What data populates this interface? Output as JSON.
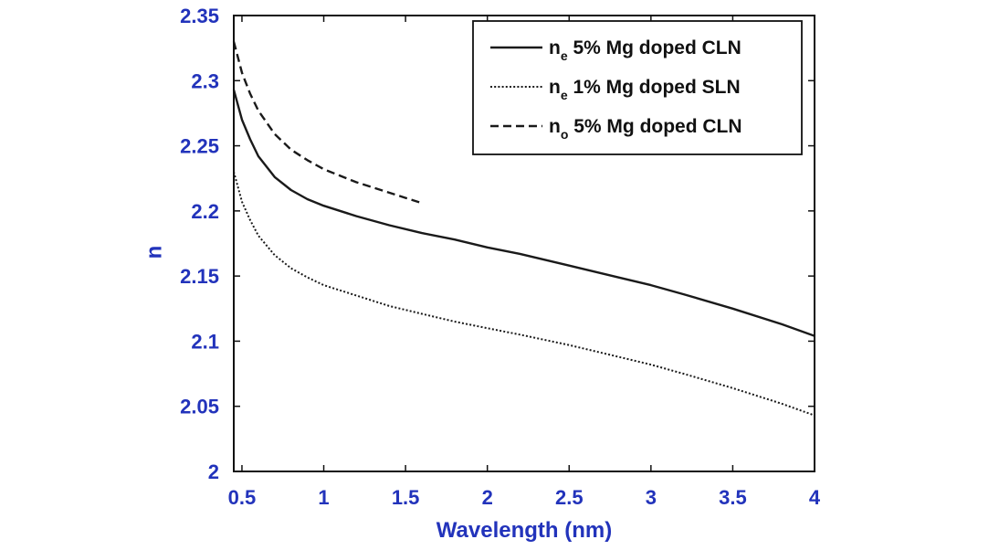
{
  "chart_data": {
    "type": "line",
    "title": "",
    "xlabel": "Wavelength (nm)",
    "ylabel": "n",
    "xlim": [
      0.45,
      4.0
    ],
    "ylim": [
      2.0,
      2.35
    ],
    "xticks": [
      0.5,
      1,
      1.5,
      2,
      2.5,
      3,
      3.5,
      4
    ],
    "xtick_labels": [
      "0.5",
      "1",
      "1.5",
      "2",
      "2.5",
      "3",
      "3.5",
      "4"
    ],
    "yticks": [
      2.0,
      2.05,
      2.1,
      2.15,
      2.2,
      2.25,
      2.3,
      2.35
    ],
    "ytick_labels": [
      "2",
      "2.05",
      "2.1",
      "2.15",
      "2.2",
      "2.25",
      "2.3",
      "2.35"
    ],
    "grid": false,
    "legend_position": "top-right",
    "series": [
      {
        "name": "ne 5% Mg doped CLN",
        "legend_main": "n",
        "legend_sub": "e",
        "legend_rest": " 5% Mg doped CLN",
        "style": "solid",
        "x": [
          0.45,
          0.5,
          0.55,
          0.6,
          0.7,
          0.8,
          0.9,
          1.0,
          1.2,
          1.4,
          1.6,
          1.8,
          2.0,
          2.2,
          2.5,
          2.8,
          3.0,
          3.2,
          3.5,
          3.8,
          4.0
        ],
        "y": [
          2.293,
          2.27,
          2.255,
          2.242,
          2.226,
          2.216,
          2.209,
          2.204,
          2.196,
          2.189,
          2.183,
          2.178,
          2.172,
          2.167,
          2.158,
          2.149,
          2.143,
          2.136,
          2.125,
          2.113,
          2.104
        ]
      },
      {
        "name": "ne 1% Mg doped SLN",
        "legend_main": "n",
        "legend_sub": "e",
        "legend_rest": " 1% Mg doped SLN",
        "style": "dotted",
        "x": [
          0.45,
          0.5,
          0.55,
          0.6,
          0.7,
          0.8,
          0.9,
          1.0,
          1.2,
          1.4,
          1.6,
          1.8,
          2.0,
          2.2,
          2.5,
          2.8,
          3.0,
          3.2,
          3.5,
          3.8,
          4.0
        ],
        "y": [
          2.23,
          2.207,
          2.193,
          2.181,
          2.166,
          2.156,
          2.149,
          2.143,
          2.135,
          2.127,
          2.121,
          2.115,
          2.11,
          2.105,
          2.097,
          2.088,
          2.082,
          2.075,
          2.064,
          2.052,
          2.043
        ]
      },
      {
        "name": "no 5% Mg doped CLN",
        "legend_main": "n",
        "legend_sub": "o",
        "legend_rest": " 5% Mg doped CLN",
        "style": "dashed",
        "x": [
          0.45,
          0.5,
          0.55,
          0.6,
          0.7,
          0.8,
          0.9,
          1.0,
          1.1,
          1.2,
          1.3,
          1.4,
          1.5,
          1.6
        ],
        "y": [
          2.33,
          2.306,
          2.29,
          2.277,
          2.259,
          2.247,
          2.239,
          2.232,
          2.227,
          2.222,
          2.218,
          2.214,
          2.21,
          2.206
        ]
      }
    ]
  }
}
